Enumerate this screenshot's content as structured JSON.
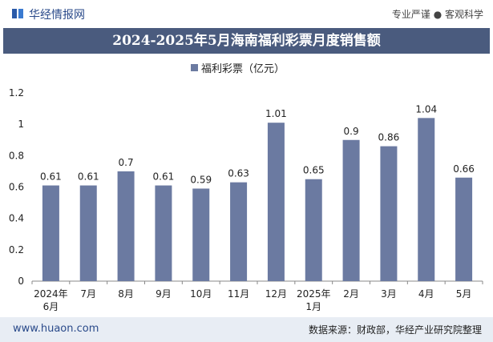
{
  "header": {
    "site_name": "华经情报网",
    "slogan": "专业严谨 ● 客观科学"
  },
  "footer": {
    "url": "www.huaon.com",
    "source": "数据来源：财政部，华经产业研究院整理"
  },
  "colors": {
    "bar": "#6b7aa1",
    "title_bar": "#4a5b7e",
    "footer_bg": "#e8edf4"
  },
  "chart_data": {
    "type": "bar",
    "title": "2024-2025年5月海南福利彩票月度销售额",
    "categories": [
      "2024年\n6月",
      "7月",
      "8月",
      "9月",
      "10月",
      "11月",
      "12月",
      "2025年\n1月",
      "2月",
      "3月",
      "4月",
      "5月"
    ],
    "series": [
      {
        "name": "福利彩票（亿元）",
        "values": [
          0.61,
          0.61,
          0.7,
          0.61,
          0.59,
          0.63,
          1.01,
          0.65,
          0.9,
          0.86,
          1.04,
          0.66
        ]
      }
    ],
    "value_labels": [
      "0.61",
      "0.61",
      "0.7",
      "0.61",
      "0.59",
      "0.63",
      "1.01",
      "0.65",
      "0.9",
      "0.86",
      "1.04",
      "0.66"
    ],
    "ylim": [
      0,
      1.2
    ],
    "yticks": [
      "0",
      "0.2",
      "0.4",
      "0.6",
      "0.8",
      "1",
      "1.2"
    ],
    "grid": false,
    "legend_position": "top-center"
  }
}
